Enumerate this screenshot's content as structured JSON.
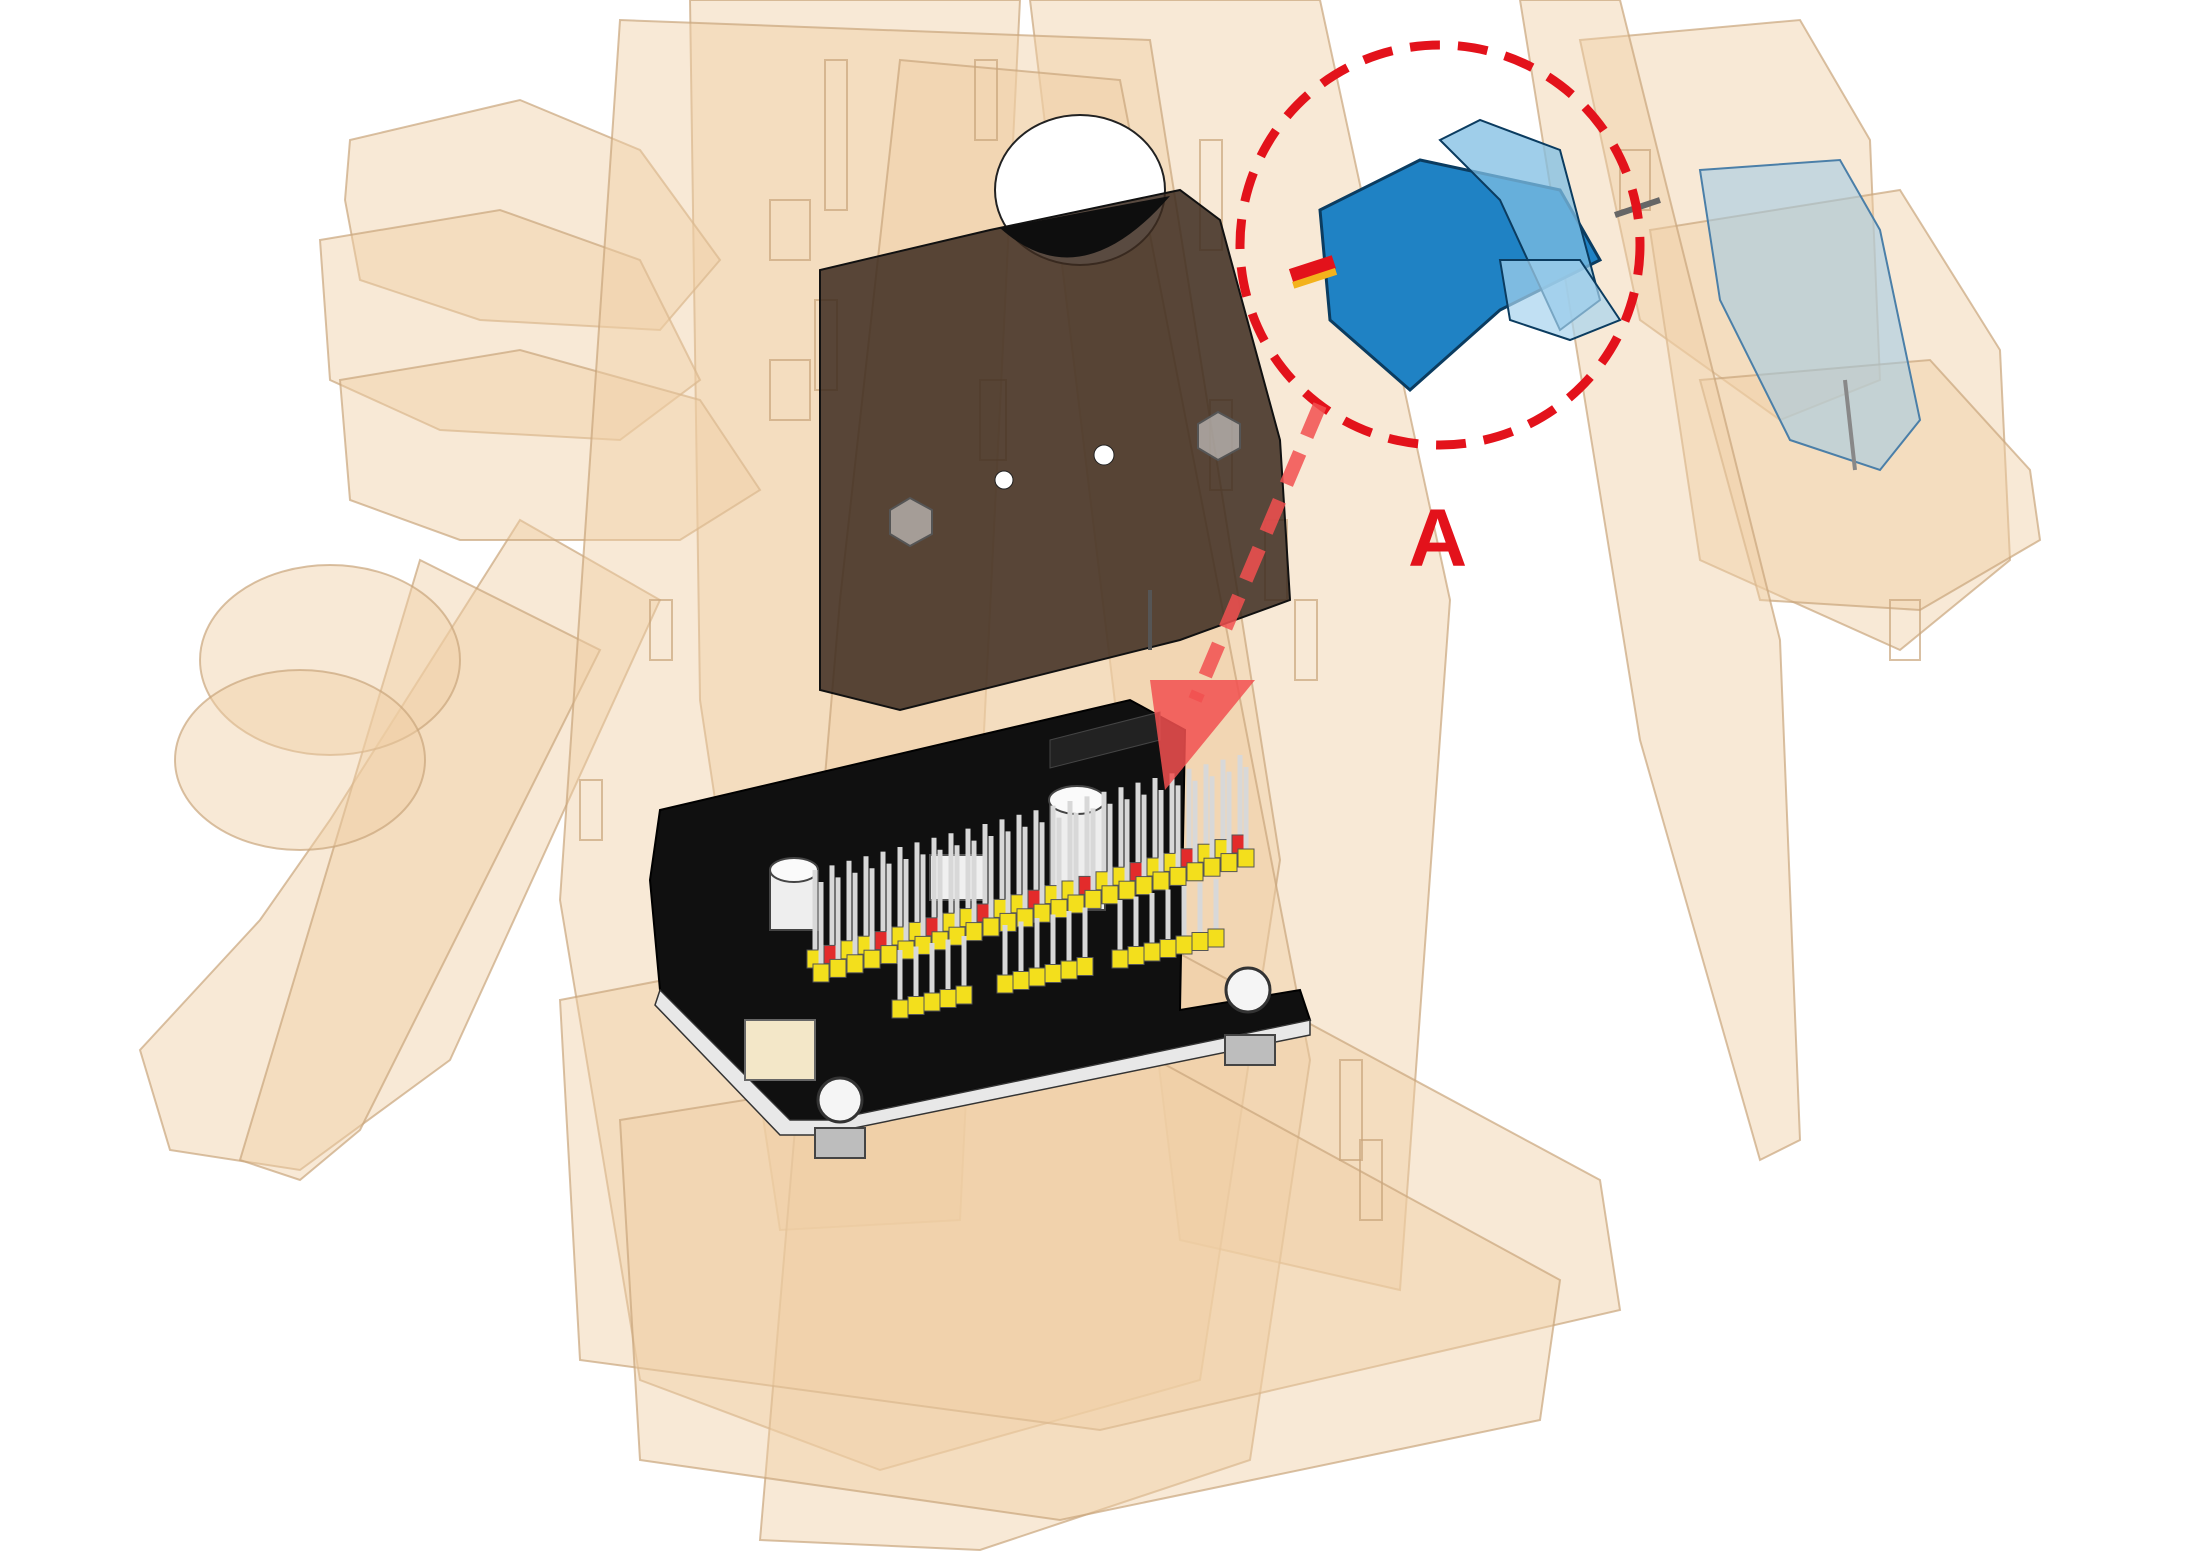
{
  "callout": {
    "label": "A",
    "color": "#e3121b",
    "arrow_color": "#f25050"
  },
  "colors": {
    "wood": "#efcfa3",
    "wood_edge": "#c9a57c",
    "servo_blue": "#1f82c4",
    "pcb_black": "#111111",
    "header_yellow": "#f3df1c",
    "header_red": "#e32b2b",
    "background": "#ffffff"
  },
  "parts": {
    "servo": "servo-motor",
    "board": "servo-driver-board",
    "bracket": "board-mounting-plate",
    "frame": "wooden-robot-frame"
  }
}
